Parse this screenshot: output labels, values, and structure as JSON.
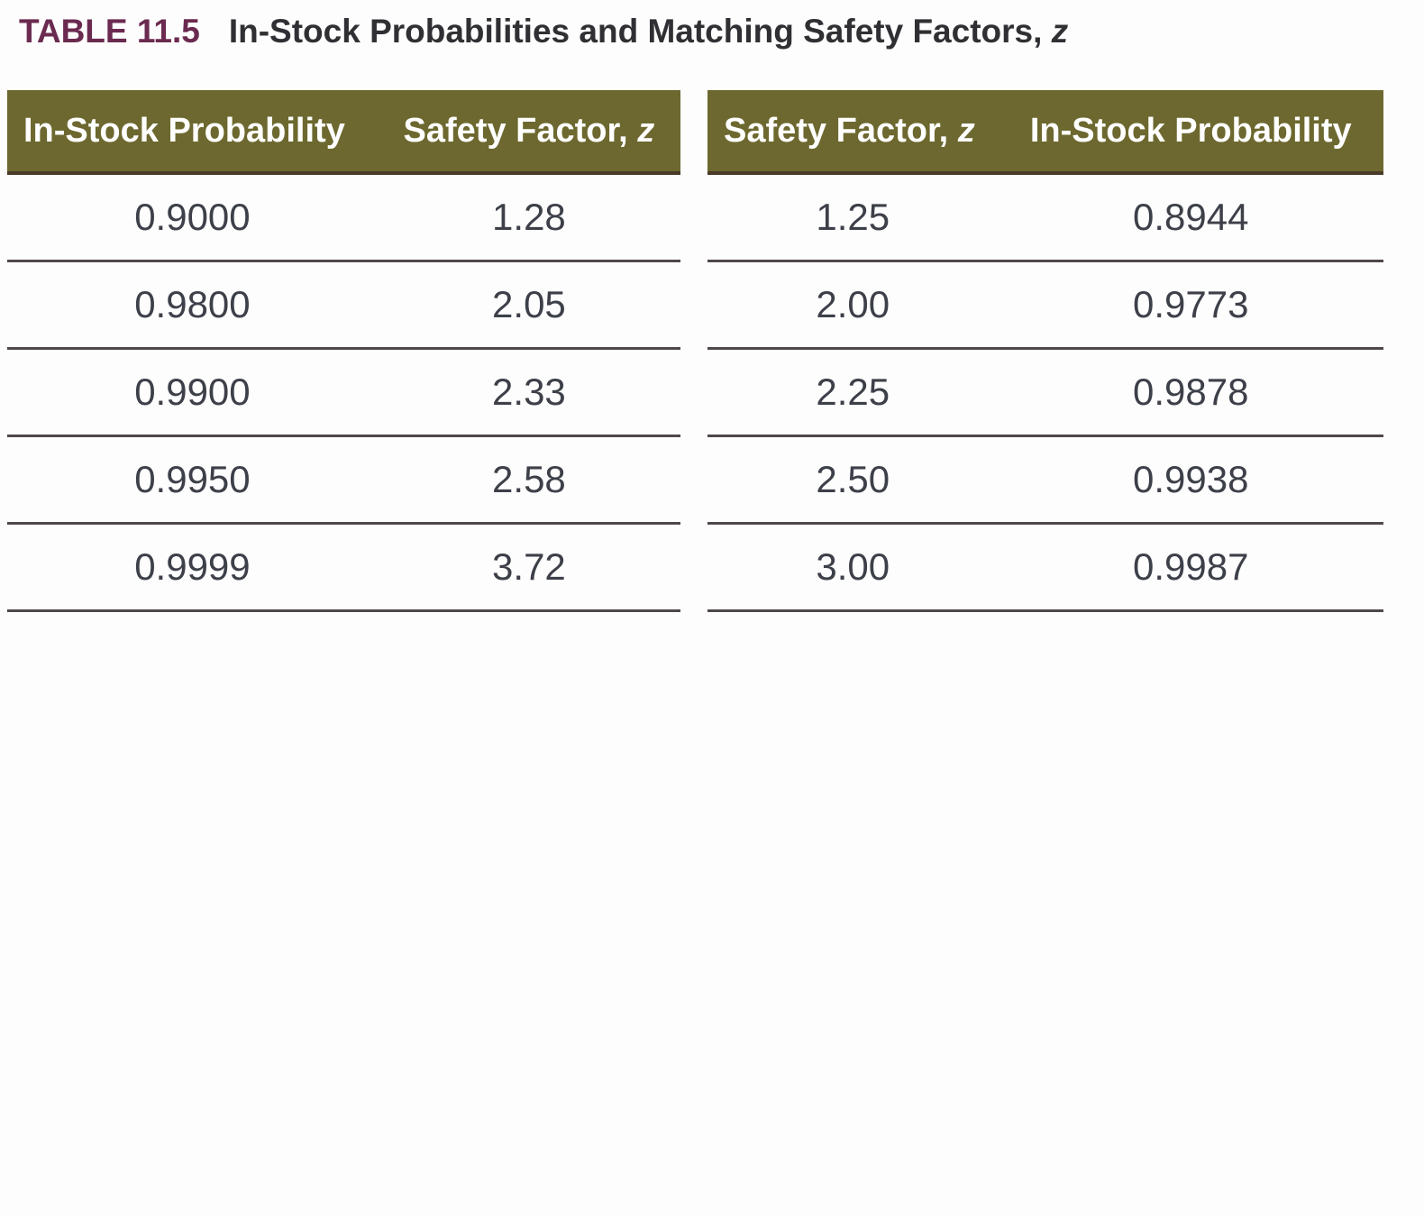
{
  "caption": {
    "label": "TABLE 11.5",
    "title_text": "In-Stock Probabilities and Matching Safety Factors, ",
    "title_italic": "z"
  },
  "colors": {
    "header_background": "#6d682f",
    "header_bottom_border": "#4a3a28",
    "header_text": "#ffffff",
    "row_divider": "#4f484b",
    "data_text": "#3d4049",
    "caption_label": "#6b2a50",
    "caption_title": "#303034",
    "page_background": "#fdfdfd"
  },
  "left_table": {
    "headers": [
      {
        "text": "In-Stock Probability",
        "italic": ""
      },
      {
        "text": "Safety Factor, ",
        "italic": "z"
      }
    ],
    "rows": [
      [
        "0.9000",
        "1.28"
      ],
      [
        "0.9800",
        "2.05"
      ],
      [
        "0.9900",
        "2.33"
      ],
      [
        "0.9950",
        "2.58"
      ],
      [
        "0.9999",
        "3.72"
      ]
    ]
  },
  "right_table": {
    "headers": [
      {
        "text": "Safety Factor, ",
        "italic": "z"
      },
      {
        "text": "In-Stock Probability",
        "italic": ""
      }
    ],
    "rows": [
      [
        "1.25",
        "0.8944"
      ],
      [
        "2.00",
        "0.9773"
      ],
      [
        "2.25",
        "0.9878"
      ],
      [
        "2.50",
        "0.9938"
      ],
      [
        "3.00",
        "0.9987"
      ]
    ]
  }
}
